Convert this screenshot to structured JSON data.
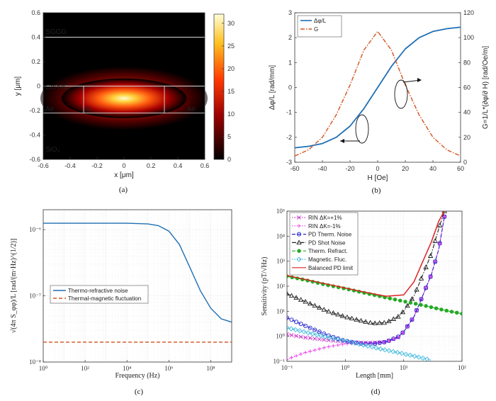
{
  "chart_data": [
    {
      "type": "heatmap",
      "caption": "(a)",
      "xlabel": "x [μm]",
      "ylabel": "y [μm]",
      "xlim": [
        -0.6,
        0.6
      ],
      "ylim": [
        -0.6,
        0.6
      ],
      "xticks": [
        "-0.6",
        "-0.4",
        "-0.2",
        "0",
        "0.2",
        "0.4",
        "0.6"
      ],
      "yticks": [
        "0.6",
        "0.4",
        "0.2",
        "0",
        "-0.2",
        "-0.4",
        "-0.6"
      ],
      "colorbar": {
        "ticks": [
          "30",
          "25",
          "20",
          "15",
          "10",
          "5",
          "0"
        ],
        "range": [
          0,
          32
        ]
      },
      "region_labels": [
        "SGGG",
        "Ce:YIG",
        "Air",
        "Si",
        "Air",
        "SiO₂"
      ],
      "layer_boundaries_y": [
        0.4,
        0.0,
        -0.22
      ],
      "waveguide": {
        "x": [
          -0.3,
          0.3
        ],
        "y": [
          -0.22,
          0.0
        ]
      },
      "mode_peak": {
        "x": 0.0,
        "y": -0.1,
        "value": 31
      },
      "colors": {
        "background": "#000000",
        "peak": "#ffffc0",
        "lines": "#d8d8d8"
      }
    },
    {
      "type": "line",
      "caption": "(b)",
      "xlabel": "H [Oe]",
      "ylabel": "Δφ/L [rad/mm]",
      "ylabel_right": "G=1/L*(∂φ/∂ H) [rad/Oe/m]",
      "xlim": [
        -60,
        60
      ],
      "ylim": [
        -3,
        3
      ],
      "ylim_right": [
        0,
        120
      ],
      "xticks": [
        "-60",
        "-40",
        "-20",
        "0",
        "20",
        "40",
        "60"
      ],
      "yticks": [
        "3",
        "2",
        "1",
        "0",
        "-1",
        "-2",
        "-3"
      ],
      "yticks_right": [
        "120",
        "100",
        "80",
        "60",
        "40",
        "20",
        "0"
      ],
      "grid": false,
      "legend": {
        "placement": "top-left",
        "entries": [
          "Δφ/L",
          "G"
        ]
      },
      "series": [
        {
          "name": "Δφ/L",
          "axis": "left",
          "color": "#1f6fb4",
          "style": "solid",
          "x": [
            -60,
            -50,
            -40,
            -30,
            -20,
            -10,
            0,
            10,
            20,
            30,
            40,
            50,
            60
          ],
          "values": [
            -2.42,
            -2.36,
            -2.25,
            -2.0,
            -1.55,
            -0.85,
            0.0,
            0.85,
            1.55,
            2.0,
            2.25,
            2.36,
            2.42
          ]
        },
        {
          "name": "G",
          "axis": "right",
          "color": "#d4531f",
          "style": "dash-dot",
          "x": [
            -60,
            -50,
            -40,
            -30,
            -20,
            -10,
            0,
            10,
            20,
            30,
            40,
            50,
            60
          ],
          "values": [
            5,
            10,
            20,
            38,
            62,
            90,
            105,
            90,
            62,
            38,
            20,
            10,
            5
          ]
        }
      ]
    },
    {
      "type": "line",
      "caption": "(c)",
      "xlabel": "Frequency (Hz)",
      "ylabel": "√(4π S_φφ)/L [rad/(m·Hz)^(1/2)]",
      "xscale": "log",
      "yscale": "log",
      "xlim": [
        1,
        1000000000
      ],
      "ylim": [
        1e-08,
        2e-06
      ],
      "xticks": [
        "10⁰",
        "10²",
        "10⁴",
        "10⁶",
        "10⁸"
      ],
      "yticks": [
        "10⁻⁶",
        "10⁻⁷",
        "10⁻⁸"
      ],
      "grid": true,
      "legend": {
        "placement": "center-left",
        "entries": [
          "Thermo-refractive noise",
          "Thermal-magnetic fluctuation"
        ]
      },
      "series": [
        {
          "name": "Thermo-refractive noise",
          "color": "#1f6fb4",
          "style": "solid",
          "x": [
            1,
            10,
            100,
            1000,
            10000,
            100000,
            316228,
            1000000,
            3162278,
            10000000,
            31622777,
            100000000,
            316227766,
            1000000000
          ],
          "values": [
            1.25e-06,
            1.25e-06,
            1.25e-06,
            1.25e-06,
            1.25e-06,
            1.22e-06,
            1.15e-06,
            9.5e-07,
            6e-07,
            2.7e-07,
            1.2e-07,
            6.5e-08,
            4.5e-08,
            4e-08
          ]
        },
        {
          "name": "Thermal-magnetic fluctuation",
          "color": "#d4531f",
          "style": "dashed",
          "x": [
            1,
            1000000000
          ],
          "values": [
            2e-08,
            2e-08
          ]
        }
      ]
    },
    {
      "type": "line",
      "caption": "(d)",
      "xlabel": "Length [mm]",
      "ylabel": "Sensitivity (pT/√Hz)",
      "xscale": "log",
      "yscale": "log",
      "xlim": [
        0.1,
        100
      ],
      "ylim": [
        0.1,
        100000
      ],
      "xticks": [
        "10⁻¹",
        "10⁰",
        "10¹",
        "10²"
      ],
      "yticks": [
        "10⁵",
        "10⁴",
        "10³",
        "10²",
        "10¹",
        "10⁰",
        "10⁻¹"
      ],
      "grid": true,
      "legend": {
        "placement": "top-left",
        "entries": [
          "RIN ΔK=+1%",
          "RIN ΔK=-1%",
          "PD Therm. Noise",
          "PD Shot Noise",
          "Therm. Refract.",
          "Magnetic. Fluc.",
          "Balanced PD limit"
        ]
      },
      "series": [
        {
          "name": "RIN ΔK=+1%",
          "color": "#cc33cc",
          "style": "dotted",
          "marker": "x",
          "x": [
            0.1,
            0.2,
            0.5,
            1,
            2,
            3,
            5,
            8,
            10,
            15,
            20,
            30,
            40,
            50
          ],
          "values": [
            1.2,
            0.9,
            0.7,
            0.6,
            0.55,
            0.55,
            0.6,
            0.9,
            1.5,
            6,
            30,
            300,
            3000,
            60000
          ]
        },
        {
          "name": "RIN ΔK=-1%",
          "color": "#ee44ee",
          "style": "dotted",
          "marker": "plus",
          "x": [
            0.1,
            0.2,
            0.5,
            1,
            2,
            3,
            5,
            8,
            10,
            15,
            20,
            30,
            40,
            50
          ],
          "values": [
            0.12,
            0.22,
            0.38,
            0.5,
            0.55,
            0.55,
            0.6,
            0.9,
            1.5,
            6,
            30,
            300,
            3000,
            60000
          ]
        },
        {
          "name": "PD Therm. Noise",
          "color": "#2222cc",
          "style": "dashed",
          "marker": "circle",
          "x": [
            0.1,
            0.2,
            0.5,
            1,
            2,
            3,
            5,
            8,
            10,
            15,
            20,
            30,
            40,
            50
          ],
          "values": [
            5.5,
            2.7,
            1.1,
            0.65,
            0.5,
            0.5,
            0.6,
            0.95,
            1.5,
            6,
            30,
            300,
            3000,
            60000
          ]
        },
        {
          "name": "PD Shot Noise",
          "color": "#222222",
          "style": "dash-dot",
          "marker": "triangle",
          "x": [
            0.1,
            0.2,
            0.5,
            1,
            2,
            3,
            5,
            8,
            10,
            15,
            20,
            30,
            40,
            50
          ],
          "values": [
            50,
            25,
            10,
            6,
            4,
            3.3,
            3.5,
            6,
            10,
            40,
            200,
            2000,
            20000,
            100000
          ]
        },
        {
          "name": "Therm. Refract.",
          "color": "#22aa22",
          "style": "dashed",
          "marker": "star",
          "x": [
            0.1,
            0.2,
            0.5,
            1,
            2,
            5,
            10,
            20,
            50,
            100
          ],
          "values": [
            250,
            180,
            110,
            80,
            56,
            35,
            25,
            18,
            11,
            8
          ]
        },
        {
          "name": "Magnetic. Fluc.",
          "color": "#44bbdd",
          "style": "dotted",
          "marker": "diamond",
          "x": [
            0.1,
            0.2,
            0.5,
            1,
            2,
            5,
            10,
            20,
            30
          ],
          "values": [
            2.2,
            1.5,
            0.9,
            0.65,
            0.45,
            0.28,
            0.2,
            0.14,
            0.11
          ]
        },
        {
          "name": "Balanced PD limit",
          "color": "#dd2222",
          "style": "solid",
          "x": [
            0.1,
            0.2,
            0.5,
            1,
            2,
            5,
            10,
            15,
            20,
            30,
            40,
            50
          ],
          "values": [
            270,
            190,
            120,
            85,
            60,
            40,
            45,
            150,
            700,
            6000,
            40000,
            100000
          ]
        }
      ]
    }
  ]
}
